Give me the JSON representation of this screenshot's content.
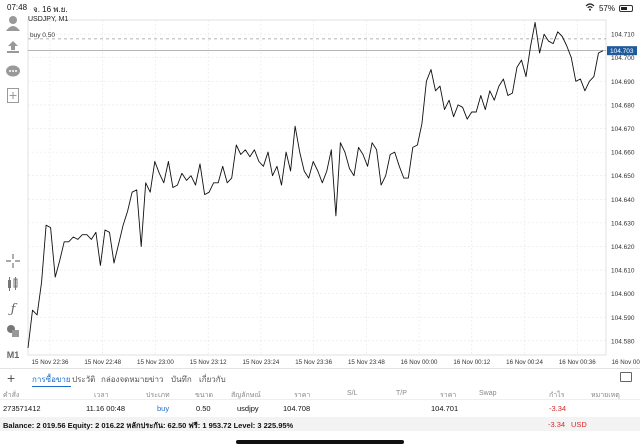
{
  "status": {
    "time": "07:48",
    "date": "จ. 16 พ.ย.",
    "battery": "57%"
  },
  "chart": {
    "symbol": "USDJPY, M1",
    "buy_label": "buy 0.50",
    "current_price": "104.703",
    "price_labels": [
      "104.710",
      "104.700",
      "104.690",
      "104.680",
      "104.670",
      "104.660",
      "104.650",
      "104.640",
      "104.630",
      "104.620",
      "104.610",
      "104.600",
      "104.590",
      "104.580"
    ],
    "time_labels": [
      "15 Nov 22:36",
      "15 Nov 22:48",
      "15 Nov 23:00",
      "15 Nov 23:12",
      "15 Nov 23:24",
      "15 Nov 23:36",
      "15 Nov 23:48",
      "16 Nov 00:00",
      "16 Nov 00:12",
      "16 Nov 00:24",
      "16 Nov 00:36",
      "16 Nov 00:48"
    ]
  },
  "chart_data": {
    "type": "line",
    "y": [
      104.577,
      104.593,
      104.591,
      104.605,
      104.629,
      104.628,
      104.607,
      104.614,
      104.622,
      104.622,
      104.624,
      104.623,
      104.625,
      104.625,
      104.623,
      104.626,
      104.612,
      104.627,
      104.626,
      104.613,
      104.621,
      104.629,
      104.635,
      104.643,
      104.644,
      104.62,
      104.647,
      104.643,
      104.656,
      104.651,
      104.647,
      104.656,
      104.645,
      104.646,
      104.651,
      104.648,
      104.65,
      104.646,
      104.655,
      104.642,
      104.643,
      104.647,
      104.647,
      104.654,
      104.647,
      104.649,
      104.663,
      104.659,
      104.661,
      104.658,
      104.661,
      104.656,
      104.654,
      104.66,
      104.65,
      104.654,
      104.646,
      104.66,
      104.652,
      104.671,
      104.66,
      104.652,
      104.649,
      104.656,
      104.652,
      104.647,
      104.652,
      104.661,
      104.633,
      104.664,
      104.66,
      104.653,
      104.65,
      104.662,
      104.659,
      104.654,
      104.664,
      104.661,
      104.646,
      104.65,
      104.659,
      104.66,
      104.654,
      104.649,
      104.649,
      104.662,
      104.663,
      104.672,
      104.69,
      104.695,
      104.686,
      104.688,
      104.678,
      104.682,
      104.675,
      104.68,
      104.679,
      104.674,
      104.677,
      104.677,
      104.684,
      104.678,
      104.686,
      104.682,
      104.688,
      104.691,
      104.684,
      104.685,
      104.696,
      104.699,
      104.692,
      104.705,
      104.715,
      104.702,
      104.71,
      104.707,
      104.706,
      104.711,
      104.709,
      104.705,
      104.7,
      104.69,
      104.691,
      104.686,
      104.69,
      104.692,
      104.702,
      104.703
    ],
    "ylim": [
      104.574,
      104.716
    ],
    "buy_level": 104.708,
    "current_level": 104.703
  },
  "tabs": {
    "items": [
      "การซื้อขาย",
      "ประวัติ",
      "กล่องจดหมาย",
      "ข่าว",
      "บันทึก",
      "เกี่ยวกับ"
    ]
  },
  "table": {
    "headers": [
      "คำสั่ง",
      "เวลา",
      "ประเภท",
      "ขนาด",
      "สัญลักษณ์",
      "ราคา",
      "S/L",
      "T/P",
      "ราคา",
      "Swap",
      "กำไร",
      "หมายเหตุ"
    ],
    "row": {
      "ticket": "273571412",
      "time": "11.16 00:48",
      "type": "buy",
      "volume": "0.50",
      "symbol": "usdjpy",
      "open_price": "104.708",
      "price": "104.701",
      "profit": "-3.34"
    }
  },
  "balance": {
    "text": "Balance: 2 019.56 Equity: 2 016.22 หลักประกัน: 62.50 ฟรี: 1 953.72 Level: 3 225.95%",
    "profit": "-3.34",
    "currency": "USD"
  },
  "colors": {
    "accent": "#1e6fd1",
    "loss": "#d62a2a",
    "price_tag": "#1e5a9c"
  }
}
